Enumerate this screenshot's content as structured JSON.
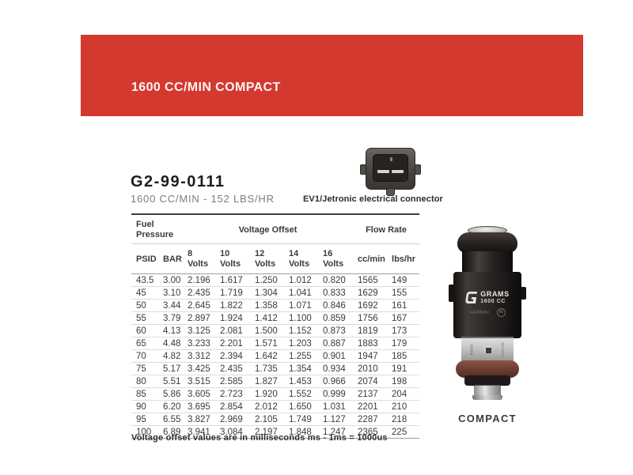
{
  "banner": {
    "title": "1600 CC/MIN COMPACT",
    "bg_color": "#d4392f"
  },
  "product": {
    "part_number": "G2-99-0111",
    "subtitle": "1600 CC/MIN - 152 LBS/HR",
    "connector_label": "EV1/Jetronic electrical connector"
  },
  "table": {
    "groups": [
      {
        "label": "Fuel Pressure",
        "span": 2
      },
      {
        "label": "Voltage Offset",
        "span": 5
      },
      {
        "label": "Flow Rate",
        "span": 2
      }
    ],
    "columns": [
      "PSID",
      "BAR",
      "8 Volts",
      "10 Volts",
      "12 Volts",
      "14 Volts",
      "16 Volts",
      "cc/min",
      "lbs/hr"
    ],
    "rows": [
      [
        "43.5",
        "3.00",
        "2.196",
        "1.617",
        "1.250",
        "1.012",
        "0.820",
        "1565",
        "149"
      ],
      [
        "45",
        "3.10",
        "2.435",
        "1.719",
        "1.304",
        "1.041",
        "0.833",
        "1629",
        "155"
      ],
      [
        "50",
        "3.44",
        "2.645",
        "1.822",
        "1.358",
        "1.071",
        "0.846",
        "1692",
        "161"
      ],
      [
        "55",
        "3.79",
        "2.897",
        "1.924",
        "1.412",
        "1.100",
        "0.859",
        "1756",
        "167"
      ],
      [
        "60",
        "4.13",
        "3.125",
        "2.081",
        "1.500",
        "1.152",
        "0.873",
        "1819",
        "173"
      ],
      [
        "65",
        "4.48",
        "3.233",
        "2.201",
        "1.571",
        "1.203",
        "0.887",
        "1883",
        "179"
      ],
      [
        "70",
        "4.82",
        "3.312",
        "2.394",
        "1.642",
        "1.255",
        "0.901",
        "1947",
        "185"
      ],
      [
        "75",
        "5.17",
        "3.425",
        "2.435",
        "1.735",
        "1.354",
        "0.934",
        "2010",
        "191"
      ],
      [
        "80",
        "5.51",
        "3.515",
        "2.585",
        "1.827",
        "1.453",
        "0.966",
        "2074",
        "198"
      ],
      [
        "85",
        "5.86",
        "3.605",
        "2.723",
        "1.920",
        "1.552",
        "0.999",
        "2137",
        "204"
      ],
      [
        "90",
        "6.20",
        "3.695",
        "2.854",
        "2.012",
        "1.650",
        "1.031",
        "2201",
        "210"
      ],
      [
        "95",
        "6.55",
        "3.827",
        "2.969",
        "2.105",
        "1.749",
        "1.127",
        "2287",
        "218"
      ],
      [
        "100",
        "6.89",
        "3.941",
        "3.084",
        "2.197",
        "1.848",
        "1.247",
        "2365",
        "225"
      ]
    ]
  },
  "footnote": "Voltage offset values are in milliseconds ms - 1ms = 1000us",
  "injector": {
    "brand": "GRAMS",
    "model": "1600 CC",
    "stamp": ">A964<",
    "circle_mark": "66",
    "side_mark_left": "8S5A5",
    "side_mark_right": "E00ST06",
    "caption": "COMPACT"
  }
}
